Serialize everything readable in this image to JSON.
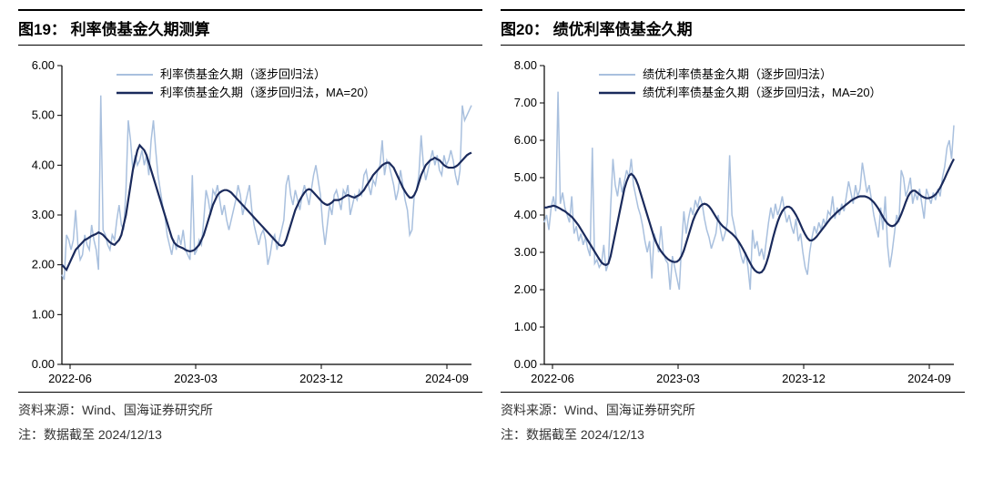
{
  "background_color": "#ffffff",
  "axis_color": "#000000",
  "text_color": "#000000",
  "light_line_color": "#a9c0de",
  "dark_line_color": "#1a2a5c",
  "light_line_width": 1.5,
  "dark_line_width": 2.2,
  "title_fontsize": 17,
  "axis_fontsize": 13,
  "legend_fontsize": 13,
  "footer_fontsize": 14,
  "left": {
    "title_prefix": "图19：",
    "title": "利率债基金久期测算",
    "ylim": [
      0.0,
      6.0
    ],
    "ytick_step": 1.0,
    "xticks": [
      "2022-06",
      "2023-03",
      "2023-12",
      "2024-09"
    ],
    "legend": {
      "series1": "利率债基金久期（逐步回归法）",
      "series2": "利率债基金久期（逐步回归法，MA=20）"
    },
    "light": [
      1.8,
      1.7,
      2.6,
      2.5,
      2.3,
      2.5,
      3.1,
      2.4,
      2.1,
      2.2,
      2.6,
      2.4,
      2.3,
      2.8,
      2.5,
      2.3,
      1.9,
      5.4,
      2.7,
      2.6,
      2.4,
      2.3,
      2.6,
      2.5,
      2.9,
      3.2,
      2.8,
      2.7,
      3.5,
      4.9,
      4.5,
      3.9,
      4.2,
      4.0,
      4.1,
      4.3,
      4.0,
      4.2,
      3.8,
      4.5,
      4.9,
      4.3,
      3.8,
      3.5,
      3.2,
      3.0,
      2.6,
      2.4,
      2.2,
      2.5,
      2.3,
      2.6,
      2.4,
      2.7,
      2.3,
      2.2,
      2.1,
      3.8,
      2.2,
      2.3,
      2.5,
      2.4,
      2.9,
      3.5,
      3.3,
      3.0,
      3.5,
      3.4,
      3.6,
      3.3,
      3.0,
      3.2,
      2.9,
      2.7,
      2.9,
      3.1,
      3.3,
      3.6,
      3.4,
      3.0,
      3.2,
      3.4,
      3.6,
      3.1,
      2.8,
      2.6,
      2.4,
      2.6,
      2.7,
      2.5,
      2.0,
      2.2,
      2.5,
      2.6,
      2.3,
      2.5,
      2.7,
      2.9,
      3.6,
      3.8,
      3.4,
      3.2,
      3.5,
      3.3,
      3.1,
      3.4,
      3.6,
      3.4,
      3.2,
      3.5,
      3.8,
      4.0,
      3.7,
      3.4,
      2.8,
      2.4,
      2.8,
      3.2,
      3.0,
      3.4,
      3.5,
      3.3,
      3.1,
      3.5,
      3.4,
      3.6,
      3.0,
      3.2,
      3.4,
      3.3,
      3.5,
      3.4,
      3.8,
      3.9,
      3.6,
      3.4,
      3.7,
      3.6,
      3.9,
      4.0,
      4.5,
      3.8,
      4.1,
      4.0,
      3.8,
      3.6,
      3.3,
      3.5,
      3.9,
      3.6,
      3.3,
      3.1,
      2.6,
      2.7,
      3.4,
      3.5,
      3.8,
      4.6,
      4.0,
      3.7,
      3.9,
      4.1,
      4.3,
      4.0,
      4.2,
      3.9,
      3.8,
      4.2,
      4.0,
      4.1,
      4.3,
      4.1,
      3.8,
      3.6,
      3.9,
      5.2,
      4.9,
      5.0,
      5.1,
      5.2
    ],
    "dark": [
      2.0,
      1.95,
      1.9,
      2.0,
      2.1,
      2.2,
      2.3,
      2.35,
      2.4,
      2.45,
      2.5,
      2.52,
      2.55,
      2.58,
      2.6,
      2.62,
      2.65,
      2.63,
      2.6,
      2.55,
      2.5,
      2.45,
      2.42,
      2.4,
      2.45,
      2.5,
      2.6,
      2.8,
      3.0,
      3.3,
      3.6,
      3.9,
      4.1,
      4.3,
      4.4,
      4.35,
      4.3,
      4.2,
      4.05,
      3.9,
      3.75,
      3.6,
      3.45,
      3.3,
      3.15,
      3.0,
      2.85,
      2.7,
      2.55,
      2.45,
      2.4,
      2.37,
      2.35,
      2.33,
      2.3,
      2.28,
      2.27,
      2.28,
      2.3,
      2.35,
      2.4,
      2.5,
      2.6,
      2.75,
      2.9,
      3.05,
      3.2,
      3.3,
      3.4,
      3.45,
      3.48,
      3.5,
      3.5,
      3.48,
      3.45,
      3.4,
      3.35,
      3.3,
      3.25,
      3.2,
      3.15,
      3.1,
      3.05,
      3.0,
      2.95,
      2.9,
      2.85,
      2.8,
      2.75,
      2.7,
      2.65,
      2.6,
      2.55,
      2.5,
      2.45,
      2.4,
      2.38,
      2.4,
      2.5,
      2.65,
      2.8,
      2.95,
      3.1,
      3.2,
      3.3,
      3.38,
      3.45,
      3.5,
      3.52,
      3.5,
      3.45,
      3.4,
      3.35,
      3.3,
      3.25,
      3.22,
      3.2,
      3.22,
      3.25,
      3.3,
      3.3,
      3.3,
      3.32,
      3.35,
      3.38,
      3.4,
      3.38,
      3.36,
      3.35,
      3.38,
      3.4,
      3.45,
      3.5,
      3.58,
      3.65,
      3.72,
      3.8,
      3.85,
      3.9,
      3.95,
      4.0,
      4.03,
      4.05,
      4.05,
      4.0,
      3.95,
      3.85,
      3.75,
      3.65,
      3.55,
      3.47,
      3.4,
      3.35,
      3.35,
      3.4,
      3.5,
      3.65,
      3.8,
      3.9,
      4.0,
      4.05,
      4.1,
      4.12,
      4.15,
      4.12,
      4.1,
      4.05,
      4.0,
      3.97,
      3.95,
      3.95,
      3.95,
      3.97,
      4.0,
      4.05,
      4.1,
      4.15,
      4.2,
      4.23,
      4.25
    ],
    "footer_source": "资料来源：Wind、国海证券研究所",
    "footer_note": "注：数据截至 2024/12/13"
  },
  "right": {
    "title_prefix": "图20：",
    "title": "绩优利率债基金久期",
    "ylim": [
      0.0,
      8.0
    ],
    "ytick_step": 1.0,
    "xticks": [
      "2022-06",
      "2023-03",
      "2023-12",
      "2024-09"
    ],
    "legend": {
      "series1": "绩优利率债基金久期（逐步回归法）",
      "series2": "绩优利率债基金久期（逐步回归法，MA=20）"
    },
    "light": [
      3.8,
      4.0,
      3.6,
      4.2,
      4.5,
      4.1,
      7.3,
      4.3,
      4.6,
      4.2,
      4.0,
      3.8,
      4.5,
      3.5,
      3.7,
      3.3,
      3.5,
      3.2,
      3.4,
      3.1,
      2.9,
      5.8,
      2.7,
      2.8,
      2.6,
      2.7,
      3.2,
      2.5,
      2.7,
      4.2,
      5.5,
      4.8,
      4.5,
      5.0,
      4.6,
      4.9,
      5.2,
      5.0,
      5.5,
      4.8,
      4.5,
      4.2,
      4.0,
      3.7,
      3.3,
      3.0,
      3.3,
      2.3,
      3.5,
      3.3,
      3.0,
      3.7,
      3.0,
      2.8,
      2.7,
      2.0,
      2.9,
      2.6,
      2.3,
      2.0,
      3.2,
      4.1,
      3.5,
      3.9,
      4.2,
      4.0,
      4.4,
      4.2,
      4.5,
      4.3,
      3.9,
      3.6,
      3.4,
      3.1,
      3.3,
      3.5,
      4.0,
      3.6,
      3.3,
      3.5,
      3.8,
      5.6,
      4.0,
      3.7,
      3.4,
      3.2,
      2.9,
      2.7,
      3.0,
      2.6,
      2.0,
      3.6,
      3.1,
      3.3,
      2.9,
      3.1,
      2.8,
      3.3,
      3.8,
      4.2,
      3.9,
      4.3,
      4.0,
      4.2,
      4.5,
      4.1,
      3.8,
      4.0,
      3.7,
      3.5,
      3.9,
      3.3,
      3.5,
      3.0,
      2.6,
      2.4,
      3.0,
      3.4,
      3.7,
      3.5,
      3.8,
      3.6,
      3.9,
      3.7,
      4.1,
      4.0,
      4.5,
      3.9,
      4.2,
      4.0,
      4.3,
      4.1,
      4.5,
      4.9,
      4.6,
      4.3,
      4.8,
      4.5,
      4.7,
      5.4,
      5.0,
      4.6,
      4.8,
      4.4,
      4.0,
      3.7,
      3.4,
      4.2,
      3.6,
      4.5,
      3.2,
      2.6,
      3.0,
      3.5,
      4.0,
      3.8,
      5.2,
      5.0,
      4.5,
      4.7,
      5.0,
      4.3,
      4.6,
      4.4,
      4.7,
      4.3,
      3.9,
      4.7,
      4.5,
      4.3,
      4.6,
      4.4,
      4.7,
      4.5,
      5.0,
      5.3,
      5.8,
      6.0,
      5.5,
      6.4
    ],
    "dark": [
      4.2,
      4.2,
      4.22,
      4.23,
      4.25,
      4.23,
      4.2,
      4.17,
      4.13,
      4.1,
      4.05,
      4.0,
      3.95,
      3.88,
      3.8,
      3.72,
      3.62,
      3.52,
      3.42,
      3.32,
      3.22,
      3.12,
      3.02,
      2.92,
      2.82,
      2.73,
      2.68,
      2.66,
      2.7,
      2.9,
      3.2,
      3.5,
      3.8,
      4.1,
      4.4,
      4.7,
      4.9,
      5.05,
      5.1,
      5.05,
      4.95,
      4.8,
      4.6,
      4.4,
      4.2,
      4.0,
      3.8,
      3.6,
      3.4,
      3.25,
      3.13,
      3.03,
      2.95,
      2.88,
      2.82,
      2.78,
      2.75,
      2.74,
      2.75,
      2.8,
      2.9,
      3.05,
      3.25,
      3.45,
      3.65,
      3.85,
      4.0,
      4.12,
      4.22,
      4.28,
      4.3,
      4.28,
      4.23,
      4.15,
      4.05,
      3.95,
      3.85,
      3.77,
      3.7,
      3.65,
      3.6,
      3.55,
      3.5,
      3.44,
      3.37,
      3.28,
      3.18,
      3.07,
      2.95,
      2.83,
      2.71,
      2.6,
      2.52,
      2.47,
      2.45,
      2.47,
      2.55,
      2.7,
      2.9,
      3.15,
      3.4,
      3.62,
      3.82,
      3.98,
      4.1,
      4.18,
      4.22,
      4.22,
      4.18,
      4.1,
      4.0,
      3.88,
      3.74,
      3.6,
      3.48,
      3.38,
      3.32,
      3.32,
      3.36,
      3.42,
      3.5,
      3.58,
      3.66,
      3.74,
      3.82,
      3.9,
      3.96,
      4.02,
      4.08,
      4.13,
      4.18,
      4.23,
      4.28,
      4.33,
      4.38,
      4.42,
      4.45,
      4.48,
      4.5,
      4.5,
      4.5,
      4.48,
      4.45,
      4.4,
      4.34,
      4.26,
      4.17,
      4.06,
      3.95,
      3.85,
      3.77,
      3.72,
      3.7,
      3.72,
      3.78,
      3.88,
      4.02,
      4.18,
      4.35,
      4.5,
      4.6,
      4.65,
      4.65,
      4.6,
      4.55,
      4.5,
      4.47,
      4.45,
      4.45,
      4.47,
      4.5,
      4.55,
      4.63,
      4.73,
      4.85,
      4.98,
      5.12,
      5.25,
      5.38,
      5.5
    ],
    "footer_source": "资料来源：Wind、国海证券研究所",
    "footer_note": "注：数据截至 2024/12/13"
  }
}
